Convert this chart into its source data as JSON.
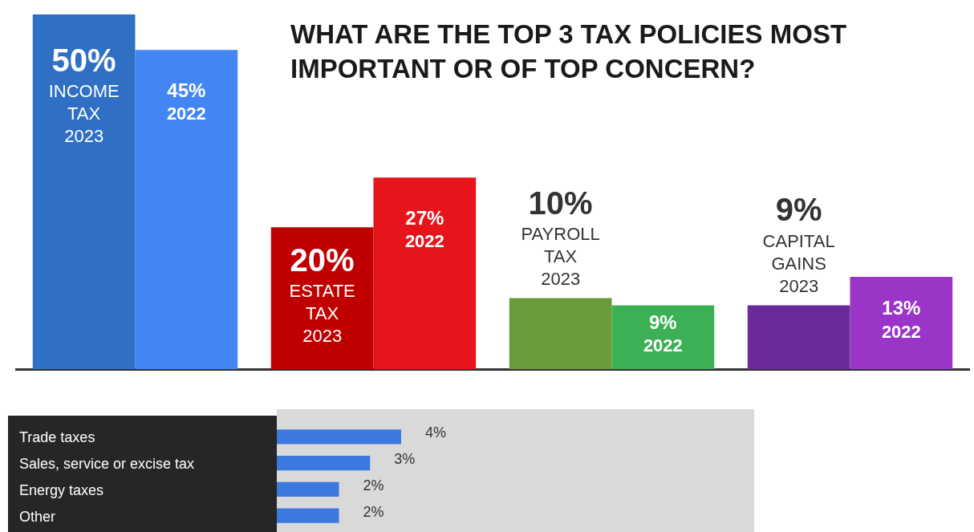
{
  "chart_data": [
    {
      "type": "bar",
      "title": "WHAT ARE THE TOP 3 TAX POLICIES MOST IMPORTANT OR OF TOP CONCERN?",
      "categories": [
        "INCOME TAX",
        "ESTATE TAX",
        "PAYROLL TAX",
        "CAPITAL GAINS"
      ],
      "series": [
        {
          "name": "2023",
          "colors": [
            "#2f6fc4",
            "#c00000",
            "#6a9a3a",
            "#6a2a9a"
          ],
          "values": [
            50,
            20,
            10,
            9
          ],
          "value_labels": [
            "50%",
            "20%",
            "10%",
            "9%"
          ]
        },
        {
          "name": "2022",
          "colors": [
            "#4286f4",
            "#e8141b",
            "#3cb054",
            "#9b35c8"
          ],
          "values": [
            45,
            27,
            9,
            13
          ],
          "value_labels": [
            "45%",
            "27%",
            "9%",
            "13%"
          ]
        }
      ],
      "tick_labels": false,
      "grid": false,
      "legend": false
    },
    {
      "type": "bar",
      "orientation": "horizontal",
      "categories": [
        "Trade taxes",
        "Sales, service or excise tax",
        "Energy taxes",
        "Other"
      ],
      "values": [
        4,
        3,
        2,
        2
      ],
      "value_labels": [
        "4%",
        "3%",
        "2%",
        "2%"
      ],
      "color": "#3b78e0",
      "tick_labels": "y",
      "grid": false,
      "legend": false
    }
  ]
}
